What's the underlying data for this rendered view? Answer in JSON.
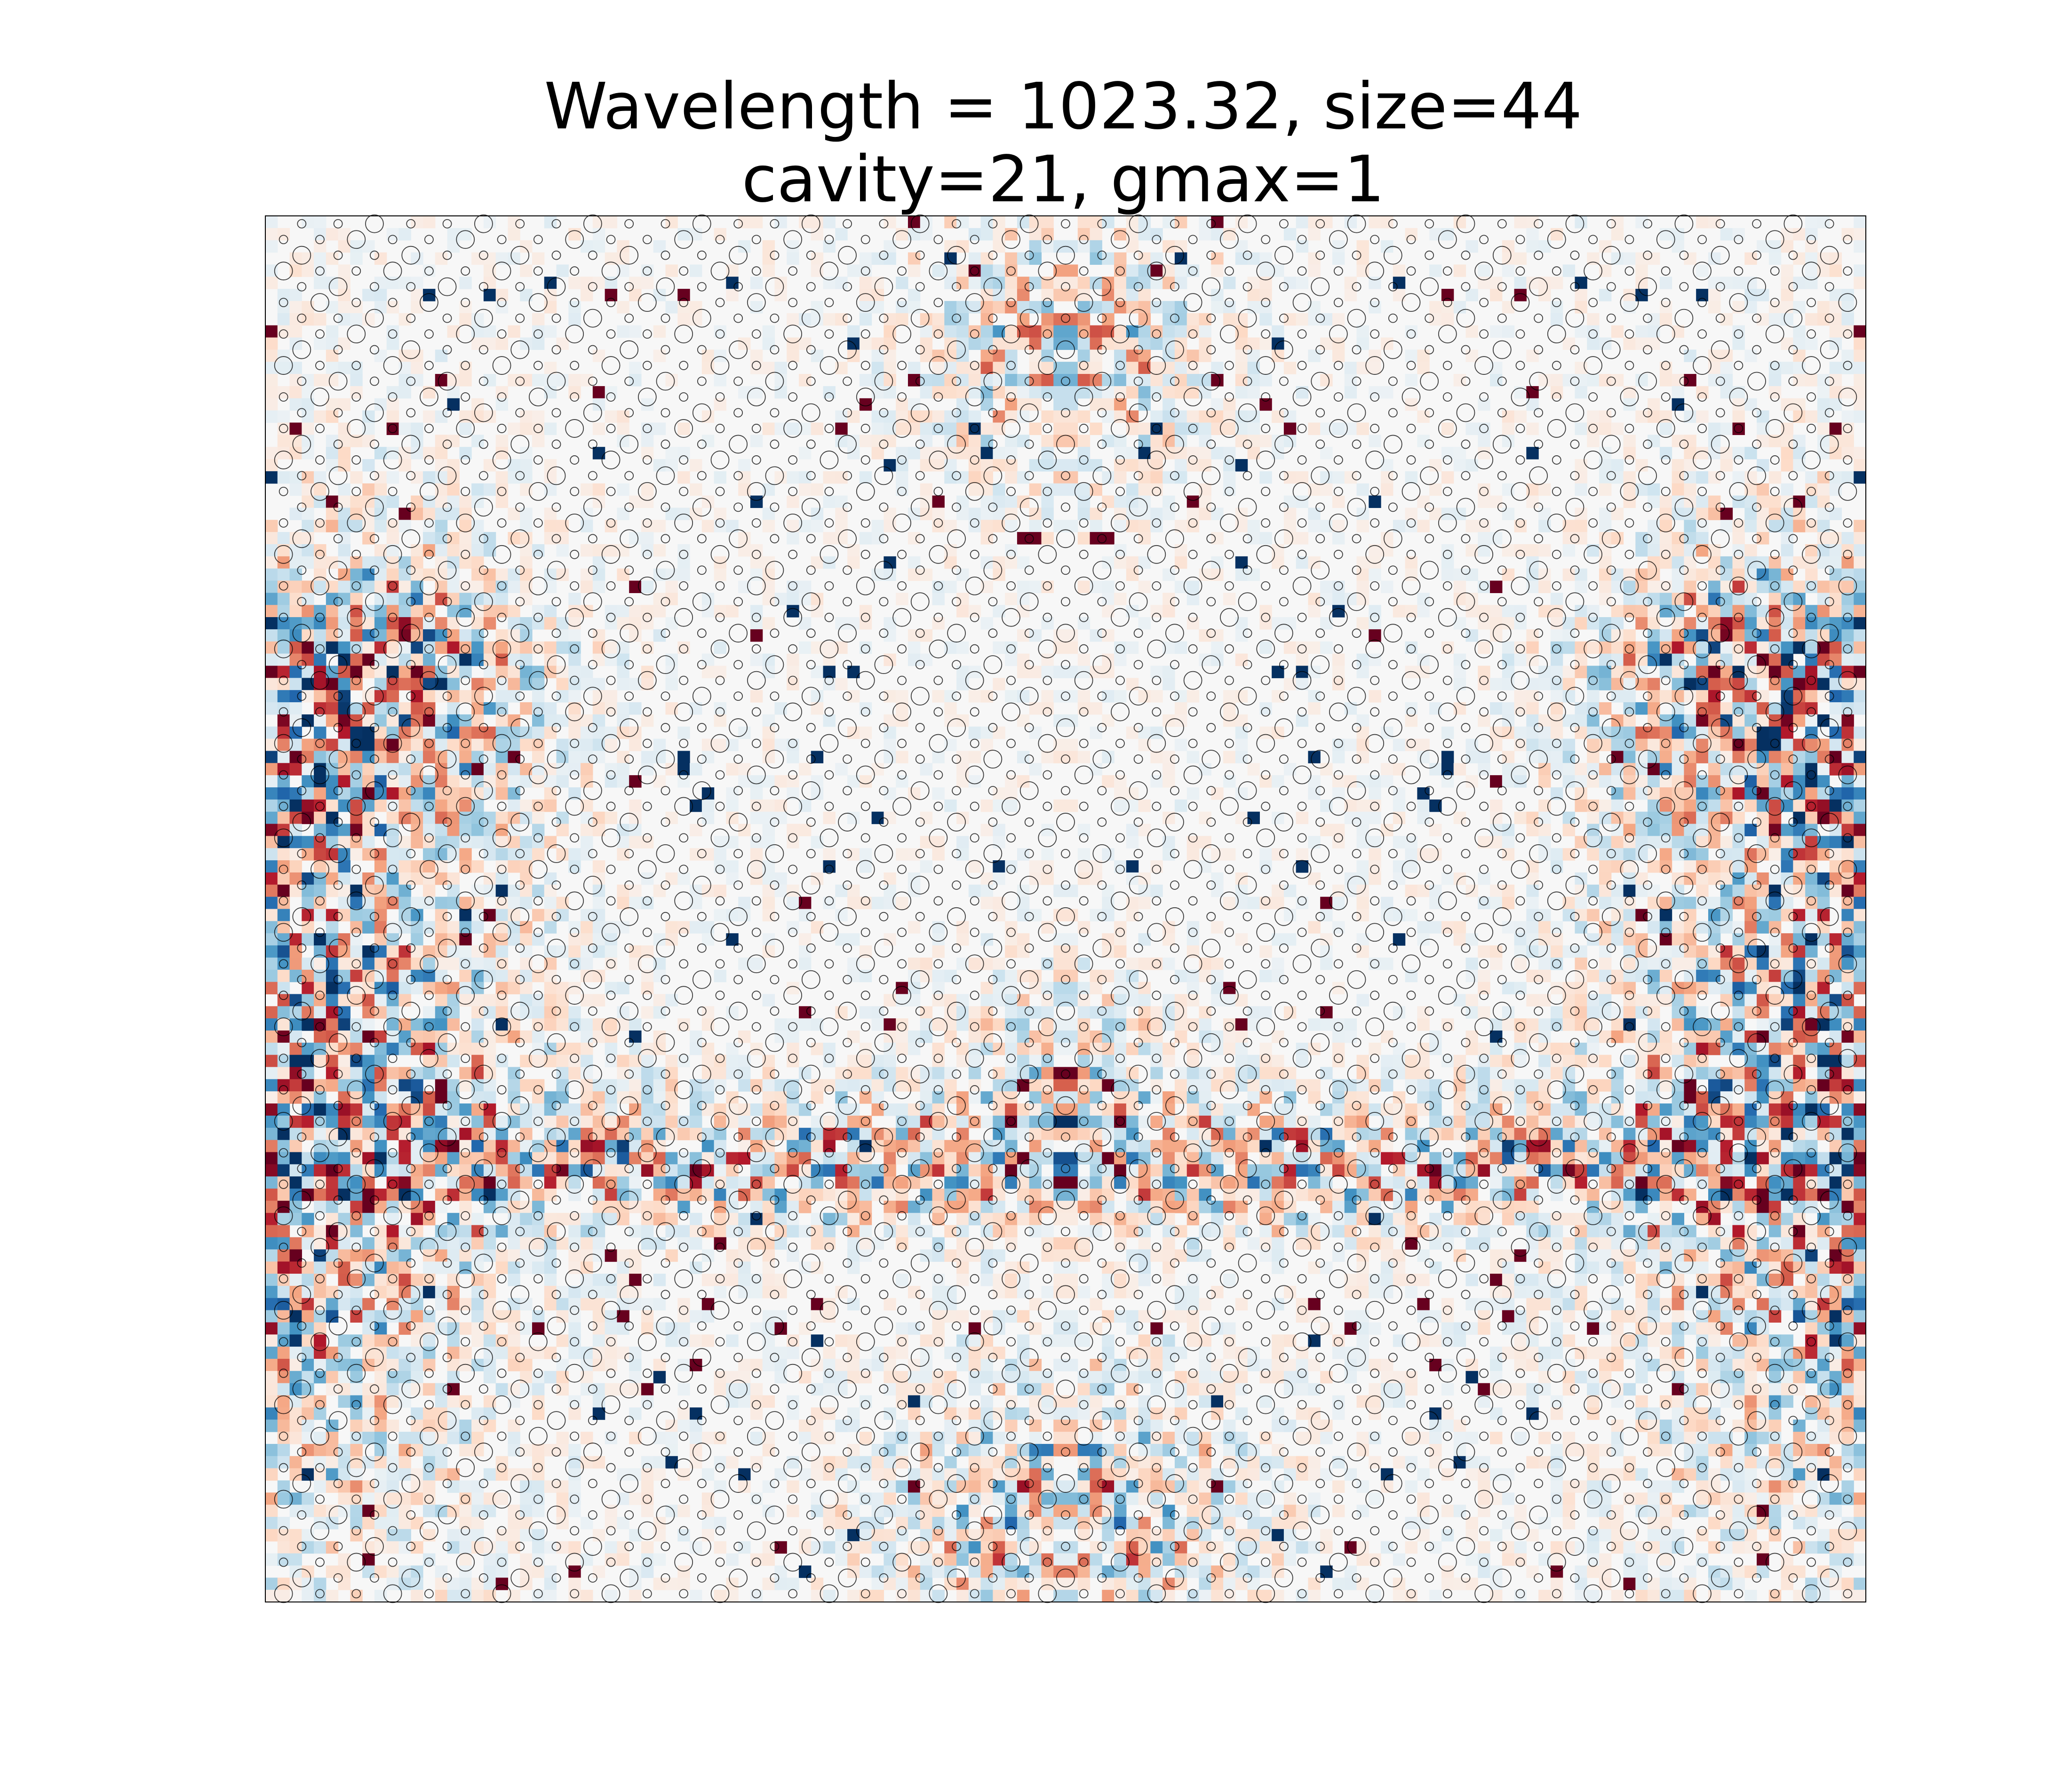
{
  "chart_data": {
    "type": "heatmap",
    "title_lines": [
      "Wavelength = 1023.32, size=44",
      "cavity=21, gmax=1"
    ],
    "xlabel": "",
    "ylabel": "",
    "axes_visible": false,
    "grid": false,
    "legend": "none",
    "colormap": "RdBu_r",
    "colormap_stops": [
      "#053061",
      "#2166ac",
      "#4393c3",
      "#92c5de",
      "#d1e5f0",
      "#f7f7f7",
      "#fddbc7",
      "#f4a582",
      "#d6604d",
      "#b2182b",
      "#67001f"
    ],
    "value_range": [
      -1,
      1
    ],
    "grid_cols": 132,
    "grid_rows": 114,
    "lattice_size": 44,
    "marker_color": "#000000",
    "description_of_field": "Symmetric scattered-field map overlaid with a lattice of circular scatterers; strong intensity near left/right edges, a horizontal band in the lower-middle, and vertical lobes at top-center and bottom-center."
  }
}
